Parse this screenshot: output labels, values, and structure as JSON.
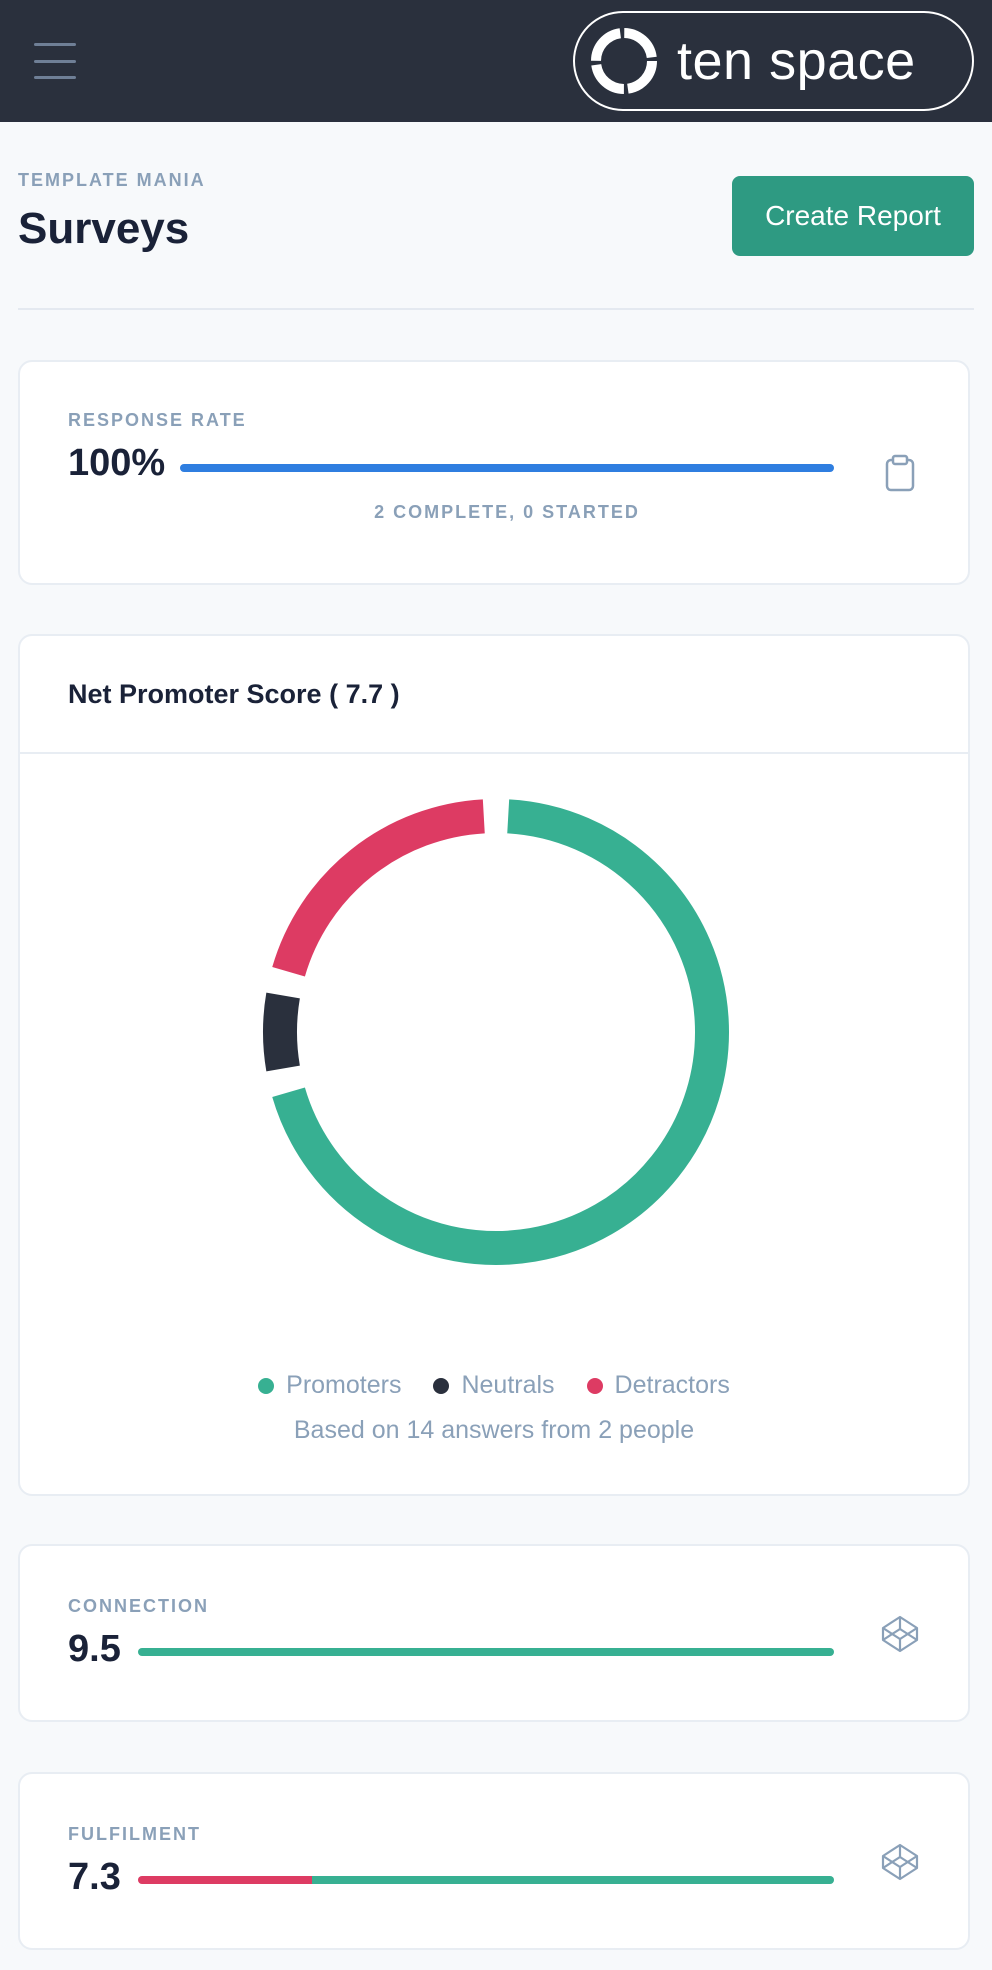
{
  "topbar": {
    "logo_text": "ten space",
    "menu_icon": "hamburger-menu-icon",
    "logo_icon": "ring-logo-icon"
  },
  "header": {
    "eyebrow": "TEMPLATE MANIA",
    "title": "Surveys",
    "create_label": "Create Report"
  },
  "response_rate": {
    "label": "RESPONSE RATE",
    "value": "100%",
    "progress": 100,
    "summary": "2 COMPLETE, 0 STARTED",
    "icon": "clipboard-icon"
  },
  "nps": {
    "title": "Net Promoter Score ( 7.7 )",
    "legend": [
      {
        "name": "Promoters",
        "color": "#37b092"
      },
      {
        "name": "Neutrals",
        "color": "#2a303d"
      },
      {
        "name": "Detractors",
        "color": "#dd3b63"
      }
    ],
    "note": "Based on 14 answers from 2 people"
  },
  "chart_data": {
    "type": "pie",
    "donut": true,
    "title": "Net Promoter Score ( 7.7 )",
    "categories": [
      "Promoters",
      "Neutrals",
      "Detractors"
    ],
    "values": [
      71.4,
      7.2,
      21.4
    ],
    "colors": [
      "#37b092",
      "#2a303d",
      "#dd3b63"
    ],
    "legend": "bottom"
  },
  "metrics": [
    {
      "label": "CONNECTION",
      "value": "9.5",
      "red_pct": 0,
      "green_pct": 100,
      "icon": "codepen-cube-icon"
    },
    {
      "label": "FULFILMENT",
      "value": "7.3",
      "red_pct": 25,
      "green_pct": 75,
      "icon": "codepen-cube-icon"
    }
  ],
  "colors": {
    "topbar": "#2a303d",
    "accent_green": "#2e9a82",
    "promoter": "#37b092",
    "neutral": "#2a303d",
    "detractor": "#dd3b63",
    "progress_blue": "#2f7ee0"
  }
}
